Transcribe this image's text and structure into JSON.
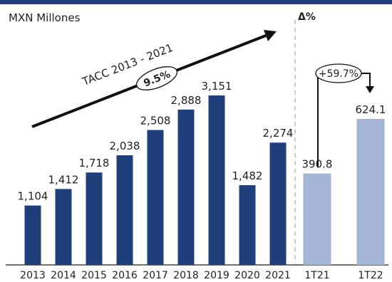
{
  "unit_label": "MXN Millones",
  "delta_header": "Δ%",
  "chart_data": [
    {
      "type": "bar",
      "categories": [
        "2013",
        "2014",
        "2015",
        "2016",
        "2017",
        "2018",
        "2019",
        "2020",
        "2021"
      ],
      "values": [
        1104,
        1412,
        1718,
        2038,
        2508,
        2888,
        3151,
        1482,
        2274
      ],
      "value_labels": [
        "1,104",
        "1,412",
        "1,718",
        "2,038",
        "2,508",
        "2,888",
        "3,151",
        "1,482",
        "2,274"
      ],
      "color": "#1f3f7a",
      "annotation": {
        "label": "TACC 2013 - 2021",
        "value": "9.5%"
      },
      "ylim": [
        0,
        3300
      ]
    },
    {
      "type": "bar",
      "categories": [
        "1T21",
        "1T22"
      ],
      "values": [
        390.8,
        624.1
      ],
      "value_labels": [
        "390.8",
        "624.1"
      ],
      "color": "#a3b4d5",
      "annotation": {
        "value": "+59.7%"
      }
    }
  ],
  "colors": {
    "top_rule": "#1f3f7a",
    "dark_bar": "#1f3f7a",
    "light_bar": "#a3b4d5",
    "divider": "#bbbbbb"
  }
}
